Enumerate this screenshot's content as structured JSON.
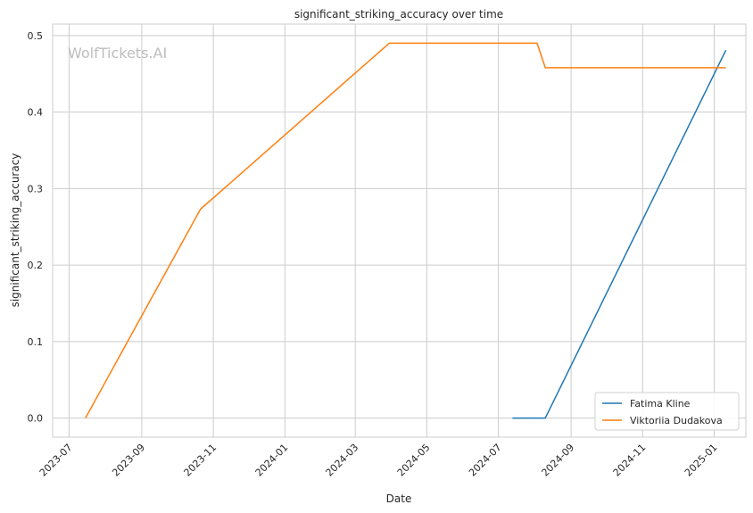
{
  "watermark": "WolfTickets.AI",
  "chart_data": {
    "type": "line",
    "title": "significant_striking_accuracy over time",
    "xlabel": "Date",
    "ylabel": "significant_striking_accuracy",
    "xlim": [
      "2023-06-17",
      "2025-01-28"
    ],
    "ylim": [
      -0.025,
      0.515
    ],
    "x_ticks": [
      "2023-07",
      "2023-09",
      "2023-11",
      "2024-01",
      "2024-03",
      "2024-05",
      "2024-07",
      "2024-09",
      "2024-11",
      "2025-01"
    ],
    "y_ticks": [
      0.0,
      0.1,
      0.2,
      0.3,
      0.4,
      0.5
    ],
    "y_tick_labels": [
      "0.0",
      "0.1",
      "0.2",
      "0.3",
      "0.4",
      "0.5"
    ],
    "grid": true,
    "legend_position": "bottom-right",
    "series": [
      {
        "name": "Fatima Kline",
        "color": "#1f77b4",
        "points": [
          {
            "x": "2024-07-13",
            "y": 0.0
          },
          {
            "x": "2024-08-10",
            "y": 0.0
          },
          {
            "x": "2025-01-11",
            "y": 0.481
          }
        ]
      },
      {
        "name": "Viktoriia Dudakova",
        "color": "#ff7f0e",
        "points": [
          {
            "x": "2023-07-15",
            "y": 0.0
          },
          {
            "x": "2023-10-21",
            "y": 0.273
          },
          {
            "x": "2024-03-30",
            "y": 0.49
          },
          {
            "x": "2024-08-03",
            "y": 0.49
          },
          {
            "x": "2024-08-10",
            "y": 0.458
          },
          {
            "x": "2025-01-11",
            "y": 0.458
          }
        ]
      }
    ]
  }
}
